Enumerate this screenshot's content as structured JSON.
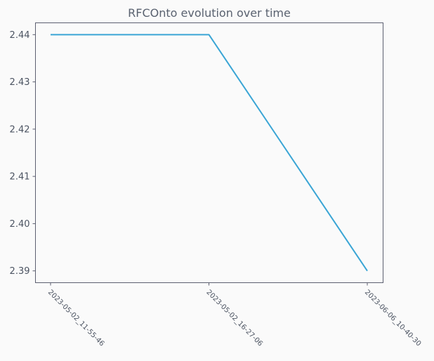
{
  "chart_data": {
    "type": "line",
    "title": "RFCOnto evolution over time",
    "xlabel": "",
    "ylabel": "",
    "categories": [
      "2023-05-02_11-55-46",
      "2023-05-02_16-27-06",
      "2023-06-06_10-40-30"
    ],
    "series": [
      {
        "values": [
          2.44,
          2.44,
          2.39
        ],
        "color": "#3aa5d5"
      }
    ],
    "ylim": [
      2.3875,
      2.4425
    ],
    "yticks": [
      2.39,
      2.4,
      2.41,
      2.42,
      2.43,
      2.44
    ],
    "ytick_labels": [
      "2.39",
      "2.40",
      "2.41",
      "2.42",
      "2.43",
      "2.44"
    ],
    "grid": false,
    "legend": false
  }
}
